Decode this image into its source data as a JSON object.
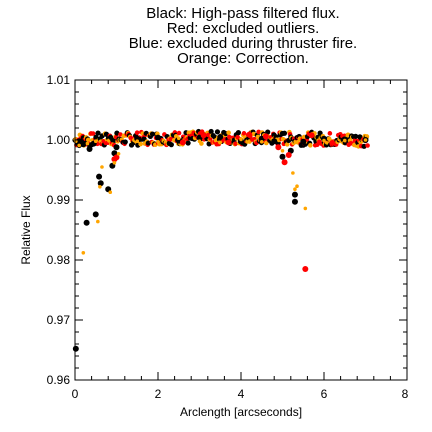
{
  "chart_data": {
    "type": "scatter",
    "title_lines": [
      "Black: High-pass filtered flux.",
      "Red: excluded outliers.",
      "Blue: excluded during thruster fire.",
      "Orange: Correction."
    ],
    "xlabel": "Arclength [arcseconds]",
    "ylabel": "Relative Flux",
    "xlim": [
      0,
      8
    ],
    "ylim": [
      0.96,
      1.01
    ],
    "x_ticks": [
      0,
      2,
      4,
      6,
      8
    ],
    "x_tick_labels": [
      "0",
      "2",
      "4",
      "6",
      "8"
    ],
    "y_ticks": [
      0.96,
      0.97,
      0.98,
      0.99,
      1.0,
      1.01
    ],
    "y_tick_labels": [
      "0.96",
      "0.97",
      "0.98",
      "0.99",
      "1.00",
      "1.01"
    ],
    "grid": false,
    "colors": {
      "black": "#000000",
      "red": "#ff0000",
      "orange": "#ffa500",
      "axis": "#000000"
    },
    "series": [
      {
        "color_key": "black",
        "points": [
          [
            0.02,
            0.9652
          ],
          [
            0.1,
            0.9998
          ],
          [
            0.15,
            0.9997
          ],
          [
            0.2,
            0.9993
          ],
          [
            0.28,
            0.9862
          ],
          [
            0.35,
            0.9985
          ],
          [
            0.45,
            0.9994
          ],
          [
            0.5,
            0.9876
          ],
          [
            0.58,
            0.9939
          ],
          [
            0.62,
            0.9928
          ],
          [
            0.8,
            0.9918
          ],
          [
            0.9,
            0.9957
          ],
          [
            0.95,
            0.9978
          ],
          [
            1.0,
            0.9988
          ],
          [
            1.5,
            1.0002
          ],
          [
            2.0,
            1.0004
          ],
          [
            2.5,
            0.9999
          ],
          [
            3.0,
            1.0004
          ],
          [
            3.5,
            1.0005
          ],
          [
            4.0,
            0.9998
          ],
          [
            4.5,
            1.0002
          ],
          [
            4.8,
            0.9998
          ],
          [
            5.0,
            0.9972
          ],
          [
            5.2,
            0.9982
          ],
          [
            5.3,
            0.9909
          ],
          [
            5.3,
            0.9897
          ],
          [
            5.5,
            0.9997
          ],
          [
            6.0,
            1.0002
          ],
          [
            6.5,
            1.0001
          ],
          [
            7.0,
            1.0
          ]
        ]
      },
      {
        "color_key": "red",
        "points": [
          [
            0.95,
            0.9968
          ],
          [
            1.0,
            0.9971
          ],
          [
            2.6,
            0.9996
          ],
          [
            3.1,
            1.0008
          ],
          [
            3.7,
            0.9996
          ],
          [
            4.2,
            1.0009
          ],
          [
            4.6,
            1.0006
          ],
          [
            4.9,
            0.9988
          ],
          [
            5.05,
            0.9963
          ],
          [
            5.15,
            0.9975
          ],
          [
            5.55,
            0.9785
          ],
          [
            5.7,
            1.0008
          ],
          [
            6.2,
            0.9995
          ]
        ]
      },
      {
        "color_key": "orange",
        "points": [
          [
            0.02,
            0.9998
          ],
          [
            0.1,
            0.9991
          ],
          [
            0.2,
            0.9812
          ],
          [
            0.3,
            0.9994
          ],
          [
            0.5,
            0.9998
          ],
          [
            0.55,
            0.9864
          ],
          [
            0.6,
            0.9922
          ],
          [
            0.65,
            0.9955
          ],
          [
            0.85,
            0.9913
          ],
          [
            0.95,
            0.9962
          ],
          [
            1.05,
            0.9977
          ],
          [
            1.5,
            0.9998
          ],
          [
            2.0,
            0.9997
          ],
          [
            2.5,
            1.0003
          ],
          [
            3.0,
            0.9998
          ],
          [
            3.5,
            0.9996
          ],
          [
            4.0,
            1.0001
          ],
          [
            4.5,
            0.9997
          ],
          [
            5.0,
            0.9982
          ],
          [
            5.25,
            0.9945
          ],
          [
            5.3,
            0.9918
          ],
          [
            5.35,
            0.9923
          ],
          [
            5.55,
            0.9886
          ],
          [
            6.0,
            0.9999
          ],
          [
            6.5,
            0.9999
          ],
          [
            7.0,
            1.0
          ]
        ]
      }
    ],
    "dense_band": {
      "x_range": [
        0.0,
        7.05
      ],
      "y_center": 1.0,
      "y_spread": 0.0011,
      "colors": [
        "black",
        "orange",
        "red"
      ]
    }
  }
}
